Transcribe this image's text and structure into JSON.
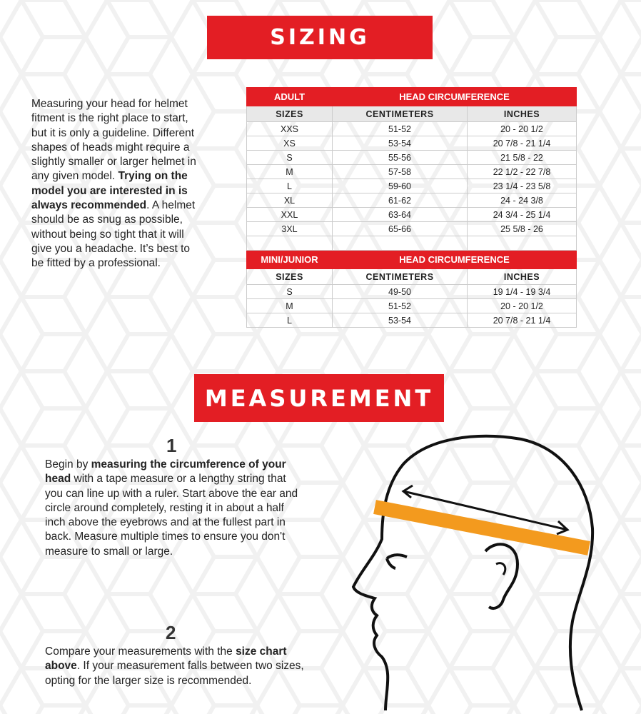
{
  "sizing": {
    "title": "SIZING",
    "text": [
      {
        "t": "Measuring your head for helmet fitment is the right place to start, but it is only a guideline. Different shapes of heads might require a slightly smaller or larger helmet in any given model. ",
        "b": false
      },
      {
        "t": "Trying on the model you are interested in is always recommended",
        "b": true
      },
      {
        "t": ". A helmet should be as snug as possible, without being so tight that it will give you a headache. It’s best to be fitted by a professional.",
        "b": false
      }
    ]
  },
  "adult": {
    "label": "ADULT",
    "group": "HEAD CIRCUMFERENCE",
    "cols": [
      "SIZES",
      "CENTIMETERS",
      "INCHES"
    ],
    "rows": [
      [
        "XXS",
        "51-52",
        "20 - 20 1/2"
      ],
      [
        "XS",
        "53-54",
        "20 7/8 - 21 1/4"
      ],
      [
        "S",
        "55-56",
        "21 5/8 - 22"
      ],
      [
        "M",
        "57-58",
        "22 1/2 - 22 7/8"
      ],
      [
        "L",
        "59-60",
        "23 1/4 - 23 5/8"
      ],
      [
        "XL",
        "61-62",
        "24 - 24 3/8"
      ],
      [
        "XXL",
        "63-64",
        "24 3/4 - 25 1/4"
      ],
      [
        "3XL",
        "65-66",
        "25 5/8 - 26"
      ]
    ]
  },
  "junior": {
    "label": "MINI/JUNIOR",
    "group": "HEAD CIRCUMFERENCE",
    "cols": [
      "SIZES",
      "CENTIMETERS",
      "INCHES"
    ],
    "rows": [
      [
        "S",
        "49-50",
        "19 1/4 - 19 3/4"
      ],
      [
        "M",
        "51-52",
        "20 - 20 1/2"
      ],
      [
        "L",
        "53-54",
        "20 7/8 - 21 1/4"
      ]
    ]
  },
  "measurement": {
    "title": "MEASUREMENT",
    "steps": [
      {
        "num": "1",
        "text": [
          {
            "t": "Begin by ",
            "b": false
          },
          {
            "t": "measuring the circumference of your head",
            "b": true
          },
          {
            "t": " with a tape measure or a lengthy string that you can line up with a ruler. Start above the ear and circle around completely, resting it in about a half inch above the eyebrows and at the fullest part in back. Measure multiple times to ensure you don't measure to small or large.",
            "b": false
          }
        ]
      },
      {
        "num": "2",
        "text": [
          {
            "t": "Compare your measurements with the ",
            "b": false
          },
          {
            "t": "size chart above",
            "b": true
          },
          {
            "t": ". If your measurement falls between two sizes, opting for the larger size is recommended.",
            "b": false
          }
        ]
      }
    ]
  },
  "colors": {
    "brand_red": "#e31e24",
    "tape": "#f39a1e"
  }
}
